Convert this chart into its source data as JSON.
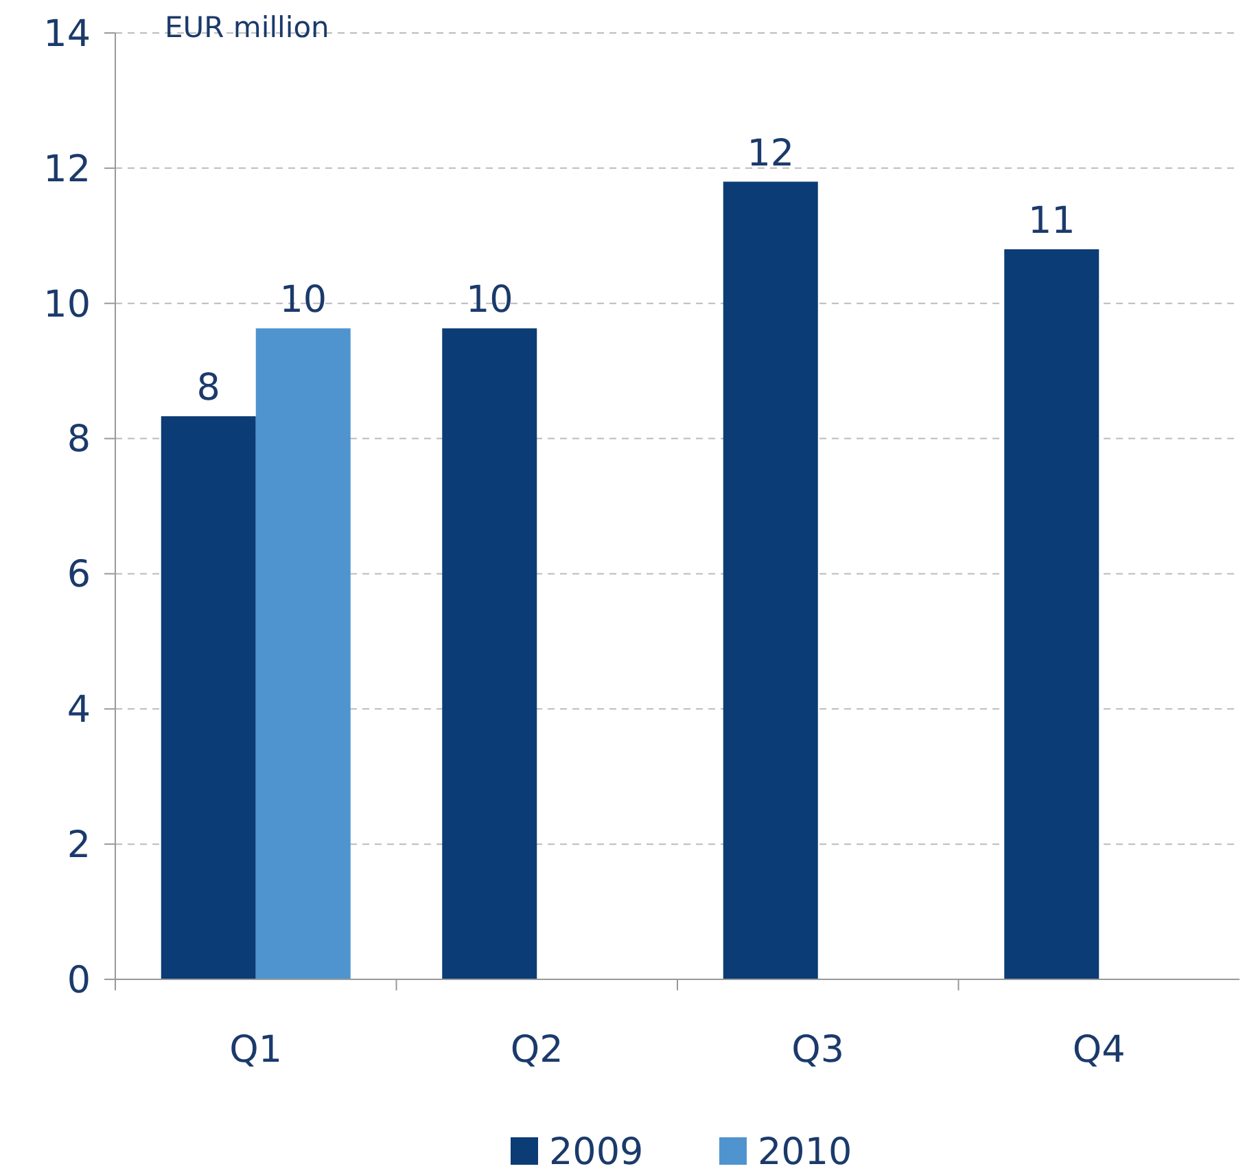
{
  "chart_data": {
    "type": "bar",
    "ylabel": "EUR million",
    "categories": [
      "Q1",
      "Q2",
      "Q3",
      "Q4"
    ],
    "series": [
      {
        "name": "2009",
        "color": "#0b3c75",
        "values": [
          8.33,
          9.63,
          11.8,
          10.8
        ],
        "value_labels": [
          "8",
          "10",
          "12",
          "11"
        ]
      },
      {
        "name": "2010",
        "color": "#4f94cf",
        "values": [
          9.63,
          null,
          null,
          null
        ],
        "value_labels": [
          "10",
          null,
          null,
          null
        ]
      }
    ],
    "ylim": [
      0,
      14
    ],
    "yticks": [
      0,
      2,
      4,
      6,
      8,
      10,
      12,
      14
    ],
    "grid": "y",
    "legend": "bottom"
  }
}
